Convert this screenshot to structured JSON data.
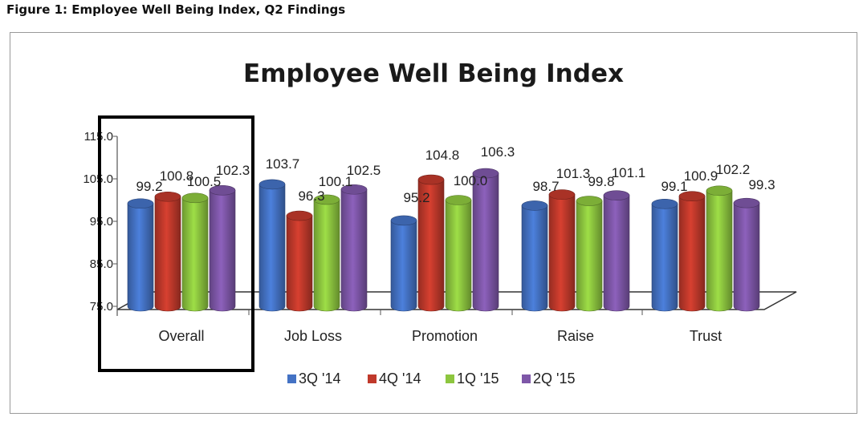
{
  "figure_caption": "Figure 1: Employee Well Being Index, Q2 Findings",
  "chart_data": {
    "type": "bar",
    "title": "Employee Well Being Index",
    "xlabel": "",
    "ylabel": "",
    "ylim": [
      75,
      115
    ],
    "y_ticks": [
      "75.0",
      "85.0",
      "95.0",
      "105.0",
      "115.0"
    ],
    "categories": [
      "Overall",
      "Job Loss",
      "Promotion",
      "Raise",
      "Trust"
    ],
    "series": [
      {
        "name": "3Q '14",
        "color": "#4472c4",
        "values": [
          99.2,
          103.7,
          95.2,
          98.7,
          99.1
        ],
        "labels": [
          "99.2",
          "103.7",
          "95.2",
          "98.7",
          "99.1"
        ]
      },
      {
        "name": "4Q '14",
        "color": "#c0392b",
        "values": [
          100.8,
          96.3,
          104.8,
          101.3,
          100.9
        ],
        "labels": [
          "100.8",
          "96.3",
          "104.8",
          "101.3",
          "100.9"
        ]
      },
      {
        "name": "1Q '15",
        "color": "#8dc63f",
        "values": [
          100.5,
          100.1,
          100.0,
          99.8,
          102.2
        ],
        "labels": [
          "100.5",
          "100.1",
          "100.0",
          "99.8",
          "102.2"
        ]
      },
      {
        "name": "2Q '15",
        "color": "#7e57a8",
        "values": [
          102.3,
          102.5,
          106.3,
          101.1,
          99.3
        ],
        "labels": [
          "102.3",
          "102.5",
          "106.3",
          "101.1",
          "99.3"
        ]
      }
    ],
    "legend_position": "bottom",
    "gridlines": false,
    "highlighted_category": "Overall"
  }
}
